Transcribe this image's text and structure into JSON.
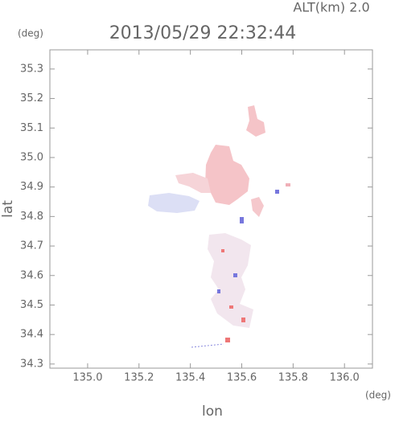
{
  "header": {
    "altitude": "ALT(km) 2.0",
    "title": "2013/05/29 22:32:44",
    "y_unit": "(deg)",
    "x_unit": "(deg)"
  },
  "chart_data": {
    "type": "map",
    "xlabel": "lon",
    "ylabel": "lat",
    "xlim": [
      134.853,
      136.109
    ],
    "ylim": [
      34.286,
      35.365
    ],
    "xticks": [
      {
        "value": 135,
        "label": "135.0"
      },
      135.2,
      135.4,
      135.6,
      135.8,
      {
        "value": 136,
        "label": "136.0"
      }
    ],
    "yticks": [
      34.3,
      34.4,
      34.5,
      34.6,
      34.7,
      34.8,
      34.9,
      {
        "value": 35,
        "label": "35.0"
      },
      35.1,
      35.2,
      35.3
    ]
  }
}
